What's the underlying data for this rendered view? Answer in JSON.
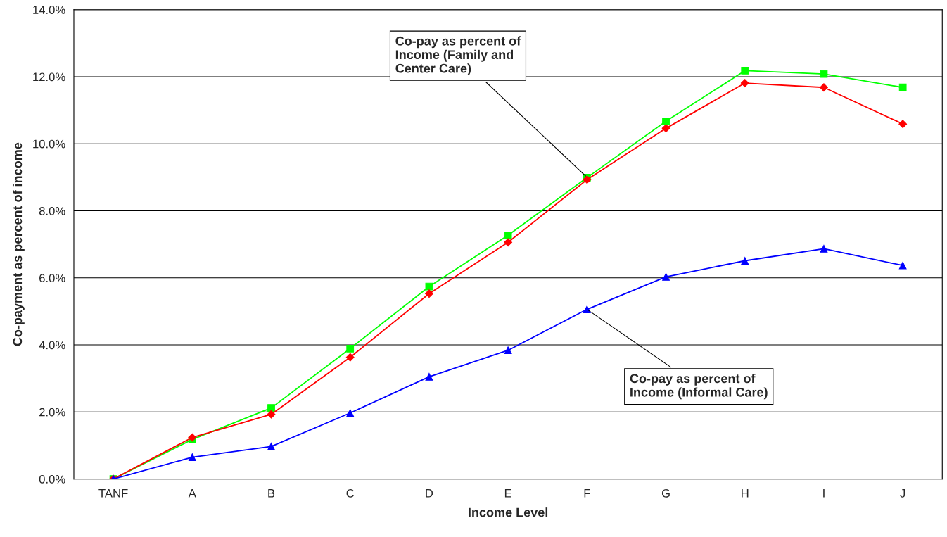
{
  "chart_data": {
    "type": "line",
    "xlabel": "Income Level",
    "ylabel": "Co-payment as percent of income",
    "categories": [
      "TANF",
      "A",
      "B",
      "C",
      "D",
      "E",
      "F",
      "G",
      "H",
      "I",
      "J"
    ],
    "series": [
      {
        "color": "#00ff00",
        "marker": "square",
        "values": [
          0.0,
          1.18,
          2.12,
          3.89,
          5.74,
          7.27,
          8.99,
          10.67,
          12.18,
          12.08,
          11.68
        ]
      },
      {
        "color": "#ff0000",
        "marker": "diamond",
        "values": [
          0.0,
          1.24,
          1.93,
          3.63,
          5.53,
          7.06,
          8.93,
          10.46,
          11.81,
          11.68,
          10.59
        ]
      },
      {
        "color": "#0000ff",
        "marker": "triangle",
        "values": [
          0.0,
          0.65,
          0.97,
          1.97,
          3.05,
          3.84,
          5.06,
          6.03,
          6.51,
          6.87,
          6.37
        ]
      }
    ],
    "ylim": [
      0,
      14
    ],
    "yticks": [
      {
        "value": 0,
        "label": "0.0%"
      },
      {
        "value": 2,
        "label": "2.0%"
      },
      {
        "value": 4,
        "label": "4.0%"
      },
      {
        "value": 6,
        "label": "6.0%"
      },
      {
        "value": 8,
        "label": "8.0%"
      },
      {
        "value": 10,
        "label": "10.0%"
      },
      {
        "value": 12,
        "label": "12.0%"
      },
      {
        "value": 14,
        "label": "14.0%"
      }
    ],
    "grid": "y",
    "line_style": "solid",
    "annotations": [
      {
        "text": "Co-pay as percent of\nIncome (Family and\nCenter Care)",
        "x": "F",
        "y": 9.0
      },
      {
        "text": "Co-pay as percent of\nIncome (Informal Care)",
        "x": "F",
        "y": 5.06
      }
    ]
  }
}
